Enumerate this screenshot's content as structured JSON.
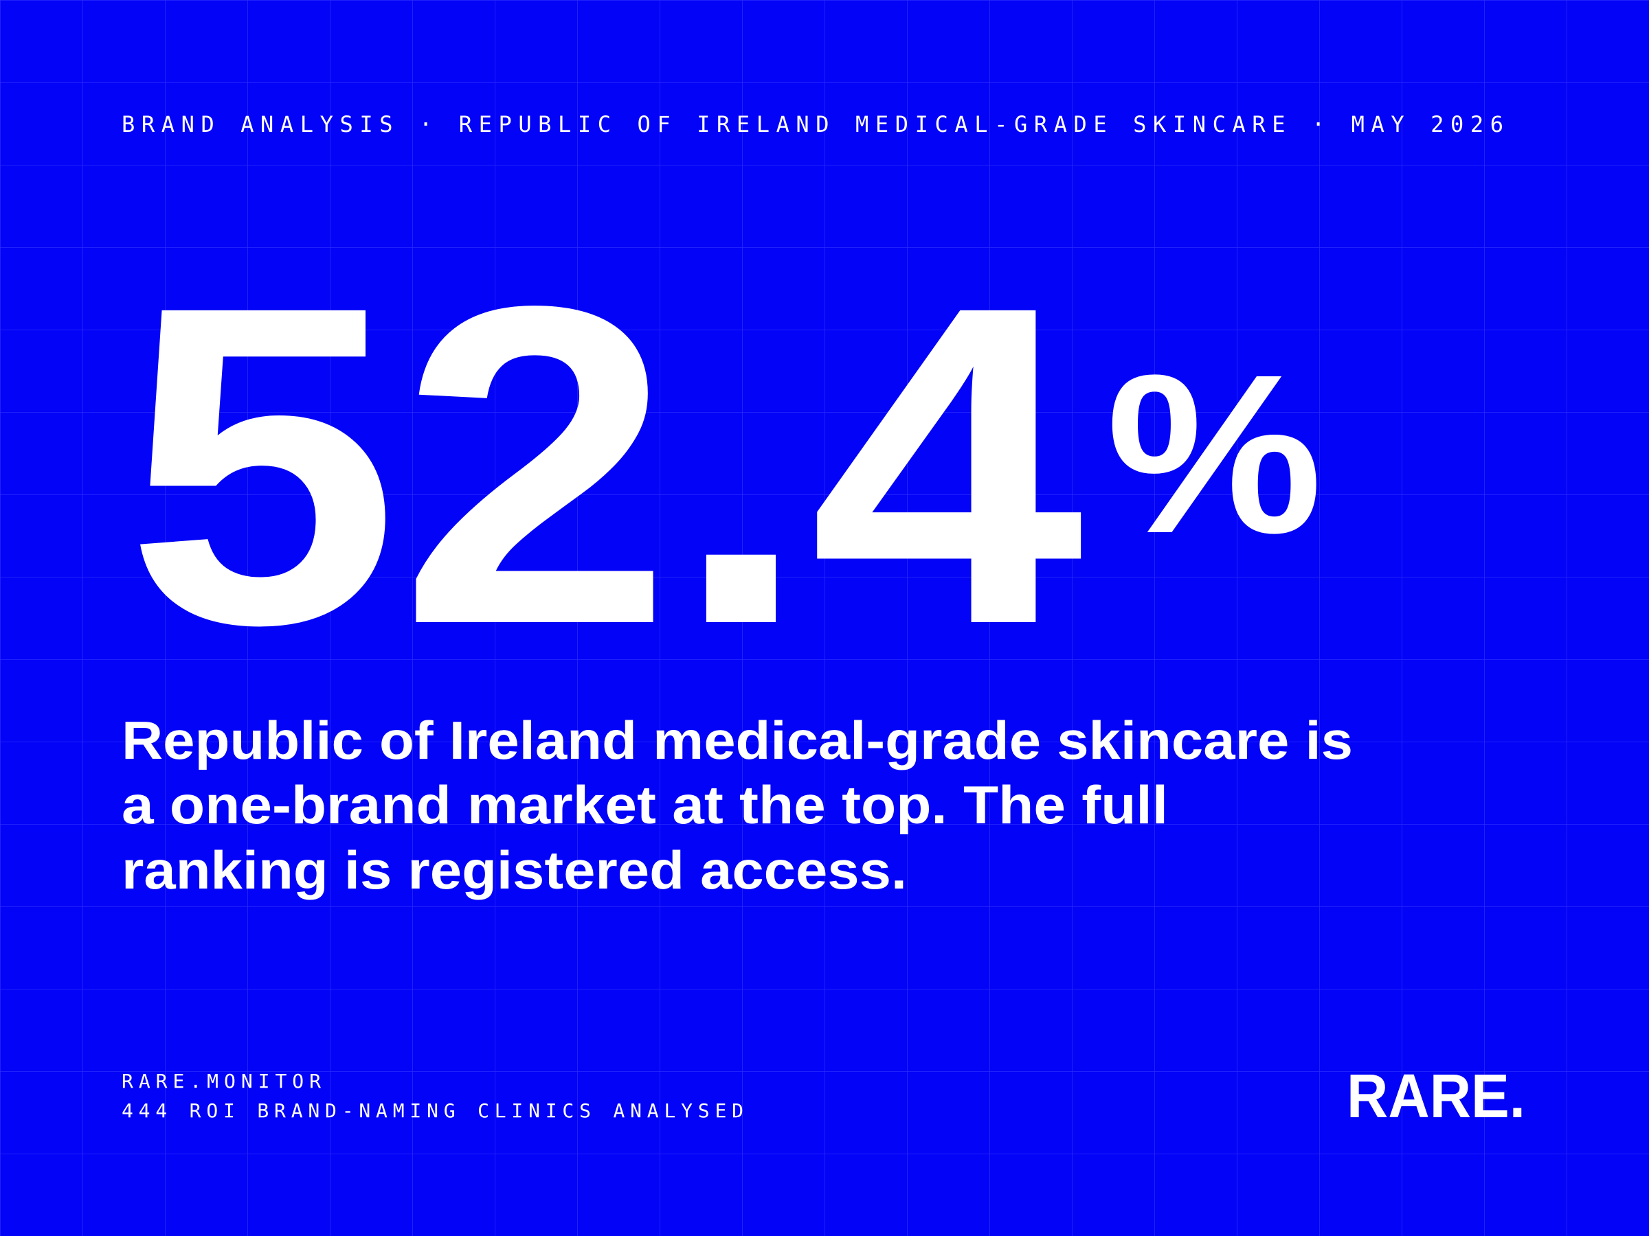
{
  "header": {
    "kicker": "BRAND ANALYSIS · REPUBLIC OF IRELAND MEDICAL-GRADE SKINCARE · MAY 2026"
  },
  "stat": {
    "value": "52.4",
    "unit": "%"
  },
  "statement": [
    "Republic of Ireland medical-grade skincare is",
    "a one-brand market at the top. The full",
    "ranking is registered access."
  ],
  "footer": {
    "source": "RARE.MONITOR",
    "note": "444 ROI BRAND-NAMING CLINICS ANALYSED",
    "logo": "RARE."
  }
}
